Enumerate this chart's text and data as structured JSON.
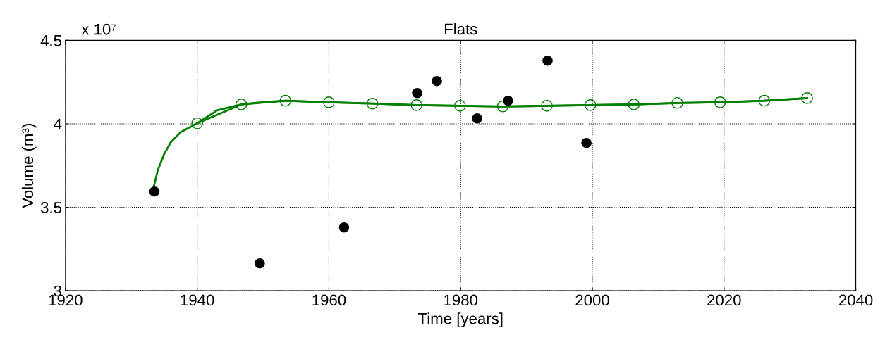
{
  "chart_data": {
    "type": "scatter",
    "title": "Flats",
    "xlabel": "Time [years]",
    "ylabel": "Volume (m³)",
    "annotations": [
      "x 10⁷"
    ],
    "xlim": [
      1920,
      2040
    ],
    "xticks": [
      1920,
      1940,
      1960,
      1980,
      2000,
      2020,
      2040
    ],
    "ylim": [
      3,
      4.5
    ],
    "yticks": [
      3,
      3.5,
      4,
      4.5
    ],
    "grid": true,
    "series": [
      {
        "type": "line",
        "color": "#007f00",
        "marker": "circle",
        "line_style": "solid",
        "x": [
          1940.0,
          1946.7,
          1953.4,
          1960.0,
          1966.6,
          1973.3,
          1979.9,
          1986.4,
          1993.1,
          1999.7,
          2006.3,
          2012.9,
          2019.4,
          2026.1,
          2032.6
        ],
        "values": [
          4.003,
          4.116,
          4.138,
          4.129,
          4.121,
          4.112,
          4.108,
          4.104,
          4.108,
          4.112,
          4.116,
          4.125,
          4.129,
          4.138,
          4.154
        ]
      },
      {
        "type": "line",
        "color": "#007f00",
        "marker": "none",
        "line_style": "solid",
        "x": [
          1933.2,
          1934,
          1935,
          1936,
          1937.5,
          1940.0,
          1943,
          1946.7,
          1950,
          1953.4,
          1960.0,
          1966.6,
          1973.3,
          1979.9,
          1986.4,
          1993.1,
          1999.7,
          2006.3,
          2012.9,
          2019.4,
          2026.1,
          2032.6
        ],
        "values": [
          3.59,
          3.72,
          3.82,
          3.89,
          3.95,
          4.003,
          4.08,
          4.116,
          4.13,
          4.138,
          4.129,
          4.121,
          4.112,
          4.108,
          4.104,
          4.108,
          4.112,
          4.116,
          4.125,
          4.129,
          4.138,
          4.154
        ]
      },
      {
        "color": "#000000",
        "marker": "circle",
        "x": [
          1933.5,
          1949.5,
          1962.3,
          1973.4,
          1976.4,
          1982.5,
          1987.2,
          1993.2,
          1999.1
        ],
        "values": [
          3.594,
          3.164,
          3.379,
          4.184,
          4.256,
          4.032,
          4.138,
          4.378,
          3.885
        ]
      }
    ]
  }
}
